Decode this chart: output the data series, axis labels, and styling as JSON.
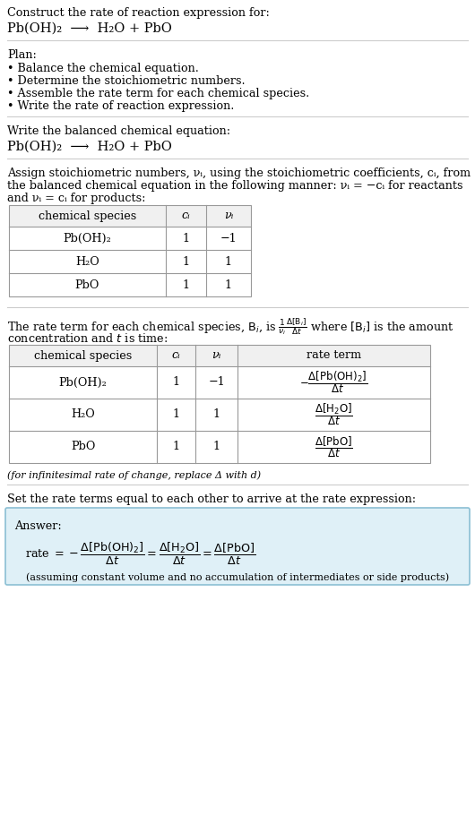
{
  "bg_color": "#ffffff",
  "text_color": "#000000",
  "section1_title": "Construct the rate of reaction expression for:",
  "section1_eq": "Pb(OH)₂  ⟶  H₂O + PbO",
  "section2_title": "Plan:",
  "section2_bullets": [
    "• Balance the chemical equation.",
    "• Determine the stoichiometric numbers.",
    "• Assemble the rate term for each chemical species.",
    "• Write the rate of reaction expression."
  ],
  "section3_title": "Write the balanced chemical equation:",
  "section3_eq": "Pb(OH)₂  ⟶  H₂O + PbO",
  "section4_intro1": "Assign stoichiometric numbers, νᵢ, using the stoichiometric coefficients, cᵢ, from",
  "section4_intro2": "the balanced chemical equation in the following manner: νᵢ = −cᵢ for reactants",
  "section4_intro3": "and νᵢ = cᵢ for products:",
  "table1_headers": [
    "chemical species",
    "cᵢ",
    "νᵢ"
  ],
  "table1_rows": [
    [
      "Pb(OH)₂",
      "1",
      "−1"
    ],
    [
      "H₂O",
      "1",
      "1"
    ],
    [
      "PbO",
      "1",
      "1"
    ]
  ],
  "section5_intro1": "The rate term for each chemical species, Bᵢ, is ¹⁄νᵢ × Δ[Bᵢ]/Δt where [Bᵢ] is the amount",
  "section5_intro2": "concentration and t is time:",
  "table2_headers": [
    "chemical species",
    "cᵢ",
    "νᵢ",
    "rate term"
  ],
  "table2_col1": [
    "Pb(OH)₂",
    "H₂O",
    "PbO"
  ],
  "table2_col2": [
    "1",
    "1",
    "1"
  ],
  "table2_col3": [
    "−1",
    "1",
    "1"
  ],
  "table2_rate_neg": "−",
  "section5_footnote": "(for infinitesimal rate of change, replace Δ with d)",
  "section6_intro": "Set the rate terms equal to each other to arrive at the rate expression:",
  "answer_label": "Answer:",
  "answer_footnote": "(assuming constant volume and no accumulation of intermediates or side products)",
  "answer_bg": "#dff0f7",
  "answer_border": "#8bbfd4",
  "divider_color": "#cccccc",
  "table_border_color": "#999999",
  "table_header_bg": "#f0f0f0"
}
